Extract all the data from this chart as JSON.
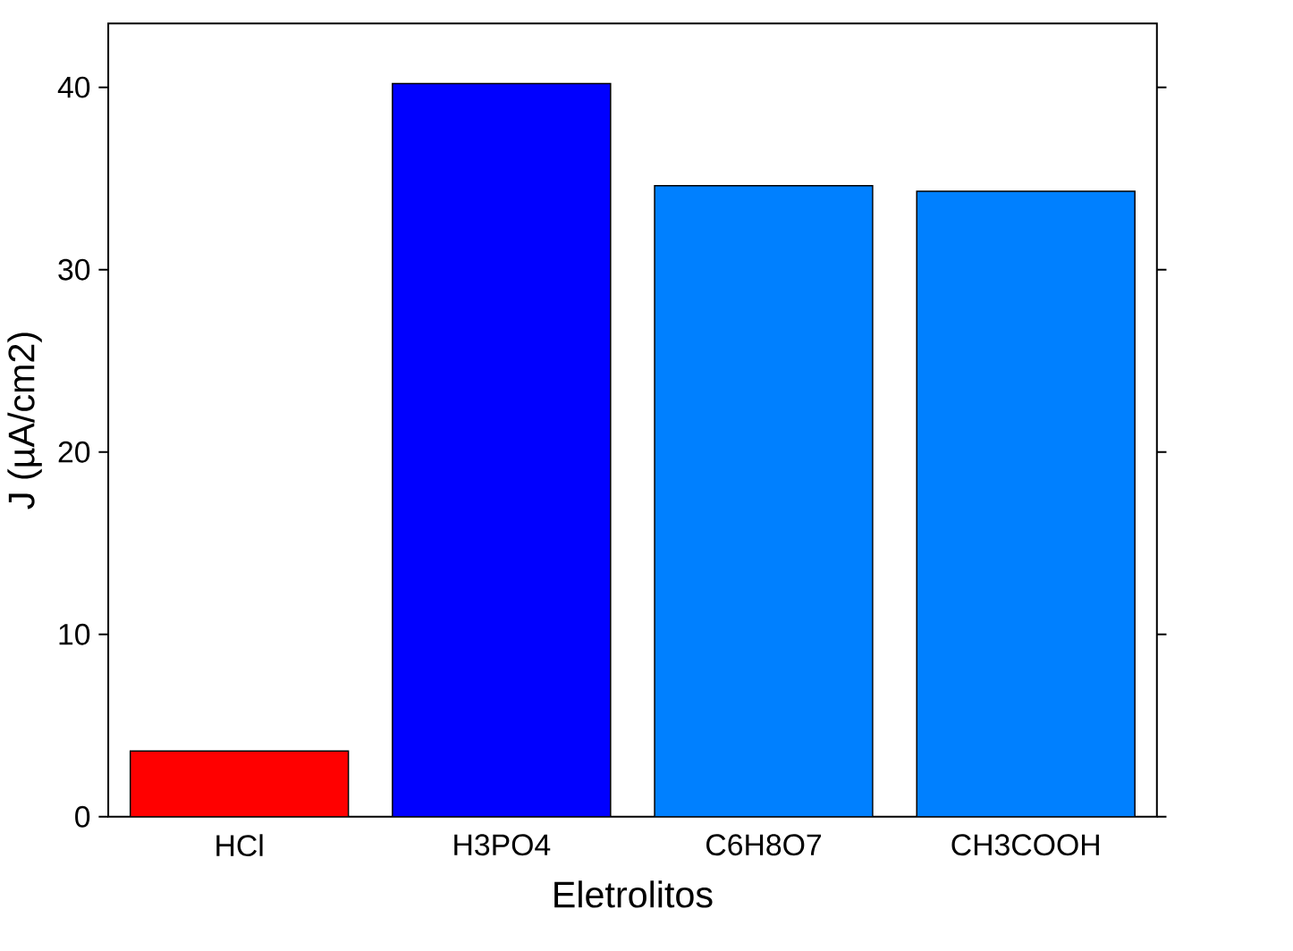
{
  "chart_data": {
    "type": "bar",
    "xlabel": "Eletrolitos",
    "ylabel": "J (µA/cm2)",
    "categories": [
      "HCl",
      "H3PO4",
      "C6H8O7",
      "CH3COOH"
    ],
    "values": [
      3.6,
      40.2,
      34.6,
      34.3
    ],
    "colors": [
      "#ff0000",
      "#0000ff",
      "#0080ff",
      "#0080ff"
    ],
    "ylim": [
      0,
      43.5
    ],
    "yticks": [
      0,
      10,
      20,
      30,
      40
    ],
    "grid": false
  }
}
